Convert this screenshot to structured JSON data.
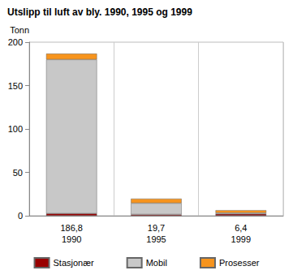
{
  "chart_data": {
    "type": "bar",
    "title": "Utslipp til luft av bly. 1990, 1995 og 1999",
    "y_label": "Tonn",
    "categories": [
      "186,8\n1990",
      "19,7\n1995",
      "6,4\n1999"
    ],
    "series": [
      {
        "name": "Stasjonær",
        "color": "#990000",
        "values": [
          2.5,
          1.5,
          2.0
        ]
      },
      {
        "name": "Mobil",
        "color": "#c8c8c8",
        "values": [
          177.5,
          13.0,
          1.2
        ]
      },
      {
        "name": "Prosesser",
        "color": "#f7941d",
        "values": [
          6.8,
          5.2,
          3.2
        ]
      }
    ],
    "stacked": true,
    "ylim": [
      0,
      200
    ],
    "yticks": [
      0,
      50,
      100,
      150,
      200
    ],
    "grid": true,
    "legend": "bottom"
  }
}
